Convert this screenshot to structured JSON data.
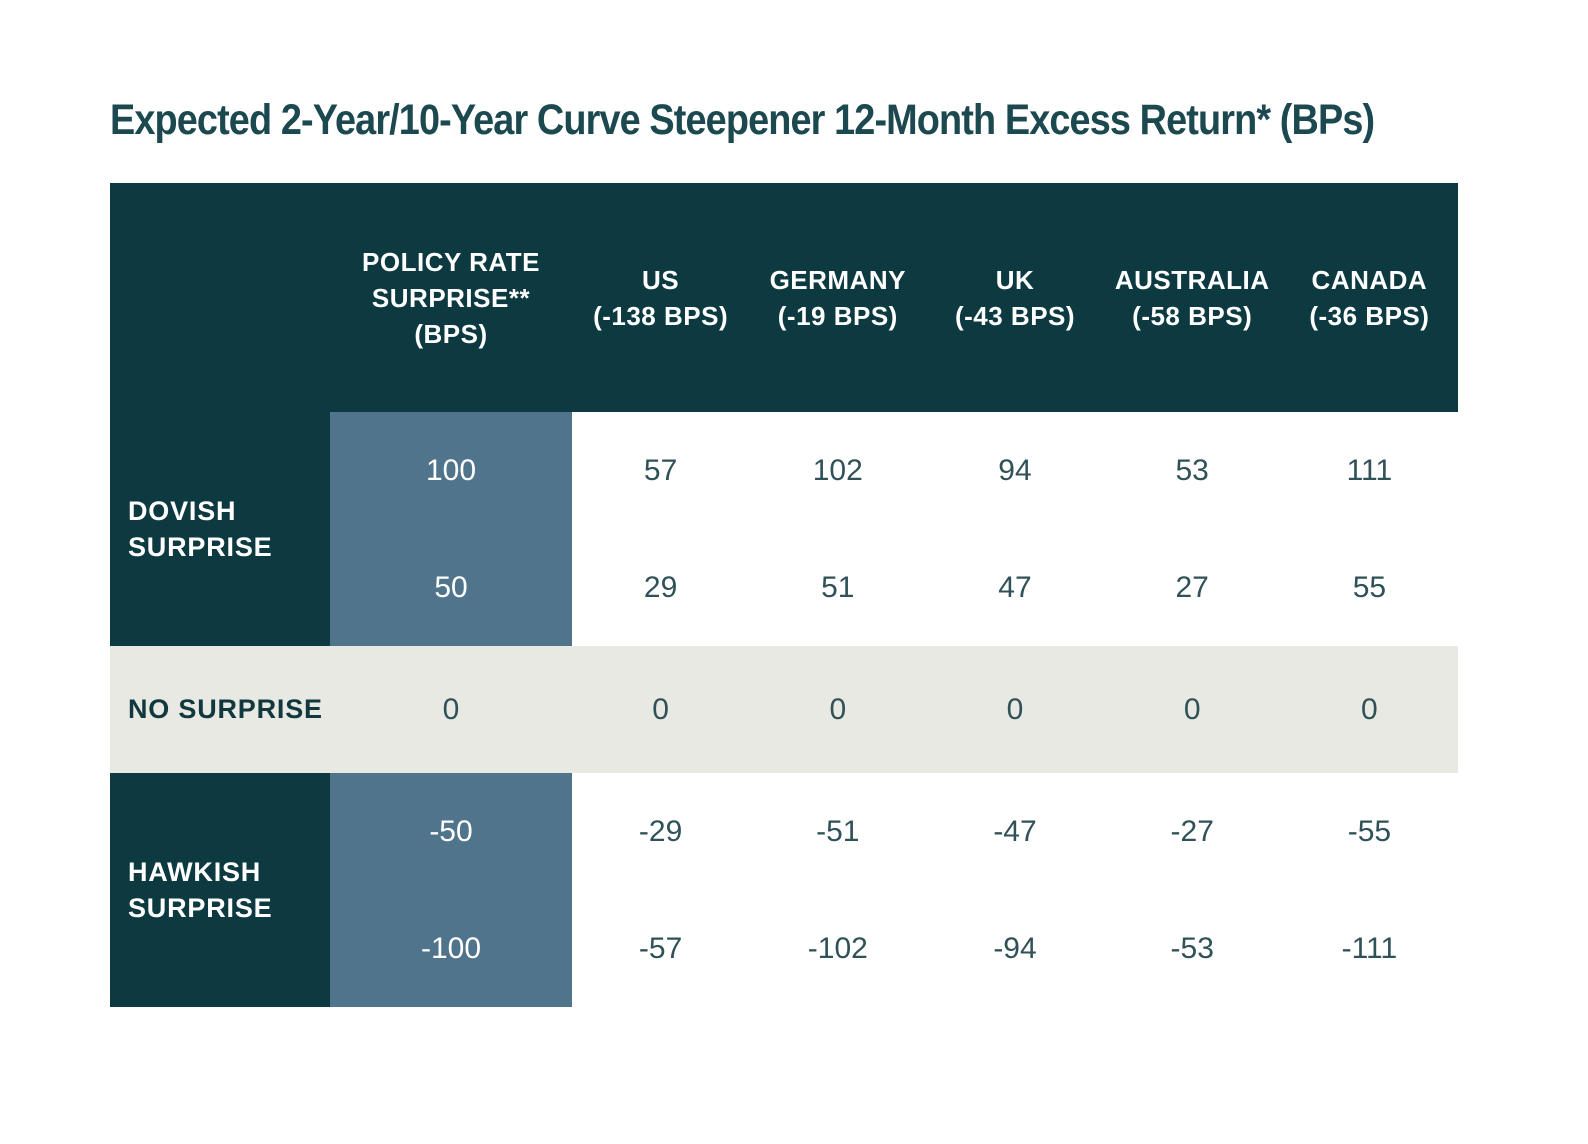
{
  "title": "Expected 2-Year/10-Year Curve Steepener 12-Month Excess Return* (BPs)",
  "colors": {
    "header_bg": "#0D3A40",
    "policy_column_bg": "#50748B",
    "no_surprise_band_bg": "#E9E9E3",
    "title_text": "#1C4850",
    "data_text": "#2F5157",
    "header_text": "#FFFFFF"
  },
  "chart_data": {
    "type": "table",
    "title": "Expected 2-Year/10-Year Curve Steepener 12-Month Excess Return* (BPs)",
    "columns": [
      {
        "label": "POLICY RATE SURPRISE** (BPS)",
        "line1": "POLICY RATE SURPRISE**",
        "line2": "(BPS)"
      },
      {
        "label": "US (-138 BPS)",
        "line1": "US",
        "line2": "(-138 BPS)"
      },
      {
        "label": "GERMANY (-19 BPS)",
        "line1": "GERMANY",
        "line2": "(-19 BPS)"
      },
      {
        "label": "UK (-43 BPS)",
        "line1": "UK",
        "line2": "(-43 BPS)"
      },
      {
        "label": "AUSTRALIA (-58 BPS)",
        "line1": "AUSTRALIA",
        "line2": "(-58 BPS)"
      },
      {
        "label": "CANADA (-36 BPS)",
        "line1": "CANADA",
        "line2": "(-36 BPS)"
      }
    ],
    "row_groups": [
      {
        "label": "DOVISH SURPRISE",
        "rows": [
          {
            "policy": 100,
            "values": [
              57,
              102,
              94,
              53,
              111
            ]
          },
          {
            "policy": 50,
            "values": [
              29,
              51,
              47,
              27,
              55
            ]
          }
        ]
      },
      {
        "label": "NO SURPRISE",
        "rows": [
          {
            "policy": 0,
            "values": [
              0,
              0,
              0,
              0,
              0
            ]
          }
        ]
      },
      {
        "label": "HAWKISH SURPRISE",
        "rows": [
          {
            "policy": -50,
            "values": [
              -29,
              -51,
              -47,
              -27,
              -55
            ]
          },
          {
            "policy": -100,
            "values": [
              -57,
              -102,
              -94,
              -53,
              -111
            ]
          }
        ]
      }
    ]
  }
}
